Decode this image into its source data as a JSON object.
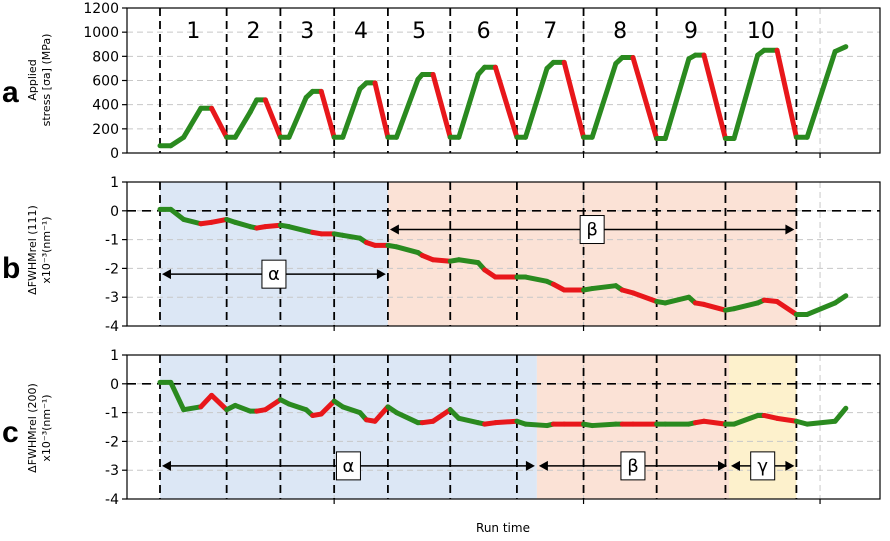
{
  "chart_data": [
    {
      "panel": "a",
      "type": "line",
      "ylabel_line1": "Applied",
      "ylabel_line2": "stress [σa] (MPa)",
      "ylim": [
        0,
        1200
      ],
      "yticks": [
        0,
        200,
        400,
        600,
        800,
        1000,
        1200
      ],
      "cycles": [
        "1",
        "2",
        "3",
        "4",
        "5",
        "6",
        "7",
        "8",
        "9",
        "10"
      ],
      "segment_colors": {
        "loading": "#2a8a1f",
        "unloading": "#e8171b"
      },
      "series": [
        {
          "points": [
            [
              0.0,
              60
            ],
            [
              0.25,
              60
            ],
            [
              0.55,
              130
            ],
            [
              0.95,
              370
            ],
            [
              1.2,
              370
            ],
            [
              1.55,
              130
            ]
          ]
        },
        {
          "points": [
            [
              1.55,
              130
            ],
            [
              1.75,
              130
            ],
            [
              2.1,
              340
            ],
            [
              2.25,
              440
            ],
            [
              2.45,
              440
            ],
            [
              2.8,
              130
            ]
          ]
        },
        {
          "points": [
            [
              2.8,
              130
            ],
            [
              3.0,
              130
            ],
            [
              3.4,
              460
            ],
            [
              3.55,
              510
            ],
            [
              3.75,
              510
            ],
            [
              4.05,
              130
            ]
          ]
        },
        {
          "points": [
            [
              4.05,
              130
            ],
            [
              4.25,
              130
            ],
            [
              4.65,
              530
            ],
            [
              4.8,
              580
            ],
            [
              5.0,
              580
            ],
            [
              5.3,
              130
            ]
          ]
        },
        {
          "points": [
            [
              5.3,
              130
            ],
            [
              5.5,
              130
            ],
            [
              6.0,
              610
            ],
            [
              6.1,
              650
            ],
            [
              6.35,
              650
            ],
            [
              6.75,
              130
            ]
          ]
        },
        {
          "points": [
            [
              6.75,
              130
            ],
            [
              6.95,
              130
            ],
            [
              7.4,
              650
            ],
            [
              7.55,
              710
            ],
            [
              7.8,
              710
            ],
            [
              8.3,
              130
            ]
          ]
        },
        {
          "points": [
            [
              8.3,
              130
            ],
            [
              8.5,
              130
            ],
            [
              9.0,
              700
            ],
            [
              9.15,
              750
            ],
            [
              9.4,
              750
            ],
            [
              9.85,
              130
            ]
          ]
        },
        {
          "points": [
            [
              9.85,
              130
            ],
            [
              10.05,
              130
            ],
            [
              10.6,
              740
            ],
            [
              10.75,
              790
            ],
            [
              11.0,
              790
            ],
            [
              11.55,
              120
            ]
          ]
        },
        {
          "points": [
            [
              11.55,
              120
            ],
            [
              11.75,
              120
            ],
            [
              12.3,
              780
            ],
            [
              12.45,
              810
            ],
            [
              12.65,
              810
            ],
            [
              13.15,
              120
            ]
          ]
        },
        {
          "points": [
            [
              13.15,
              120
            ],
            [
              13.35,
              120
            ],
            [
              13.9,
              810
            ],
            [
              14.05,
              850
            ],
            [
              14.35,
              850
            ],
            [
              14.8,
              130
            ]
          ]
        },
        {
          "points": [
            [
              14.8,
              130
            ],
            [
              15.05,
              130
            ],
            [
              15.7,
              840
            ],
            [
              15.95,
              880
            ]
          ]
        }
      ]
    },
    {
      "panel": "b",
      "type": "line",
      "ylabel_line1": "ΔFWHMrel (111)",
      "ylabel_line2": "x10⁻³(nm⁻¹)",
      "ylim": [
        -4,
        1
      ],
      "yticks": [
        -4,
        -3,
        -2,
        -1,
        0,
        1
      ],
      "regions": [
        {
          "label": "α",
          "from": 0,
          "to": 4,
          "color": "#dce7f5"
        },
        {
          "label": "β",
          "from": 4,
          "to": 10,
          "color": "#fbe2d6"
        }
      ],
      "series": [
        {
          "points": [
            [
              0.0,
              0.05
            ],
            [
              0.25,
              0.05
            ],
            [
              0.55,
              -0.3
            ],
            [
              0.95,
              -0.45
            ],
            [
              1.2,
              -0.4
            ],
            [
              1.55,
              -0.3
            ]
          ]
        },
        {
          "points": [
            [
              1.55,
              -0.3
            ],
            [
              1.75,
              -0.4
            ],
            [
              2.1,
              -0.55
            ],
            [
              2.25,
              -0.6
            ],
            [
              2.45,
              -0.55
            ],
            [
              2.8,
              -0.5
            ]
          ]
        },
        {
          "points": [
            [
              2.8,
              -0.5
            ],
            [
              3.0,
              -0.55
            ],
            [
              3.4,
              -0.7
            ],
            [
              3.55,
              -0.75
            ],
            [
              3.75,
              -0.8
            ],
            [
              4.05,
              -0.8
            ]
          ]
        },
        {
          "points": [
            [
              4.05,
              -0.8
            ],
            [
              4.25,
              -0.85
            ],
            [
              4.65,
              -0.95
            ],
            [
              4.8,
              -1.1
            ],
            [
              5.0,
              -1.2
            ],
            [
              5.3,
              -1.2
            ]
          ]
        },
        {
          "points": [
            [
              5.3,
              -1.2
            ],
            [
              5.5,
              -1.25
            ],
            [
              6.0,
              -1.45
            ],
            [
              6.1,
              -1.55
            ],
            [
              6.35,
              -1.7
            ],
            [
              6.75,
              -1.75
            ]
          ]
        },
        {
          "points": [
            [
              6.75,
              -1.75
            ],
            [
              6.95,
              -1.7
            ],
            [
              7.4,
              -1.8
            ],
            [
              7.55,
              -2.05
            ],
            [
              7.8,
              -2.3
            ],
            [
              8.3,
              -2.3
            ]
          ]
        },
        {
          "points": [
            [
              8.3,
              -2.3
            ],
            [
              8.5,
              -2.3
            ],
            [
              9.0,
              -2.45
            ],
            [
              9.15,
              -2.55
            ],
            [
              9.4,
              -2.75
            ],
            [
              9.85,
              -2.75
            ]
          ]
        },
        {
          "points": [
            [
              9.85,
              -2.75
            ],
            [
              10.05,
              -2.7
            ],
            [
              10.6,
              -2.6
            ],
            [
              10.75,
              -2.75
            ],
            [
              11.0,
              -2.85
            ],
            [
              11.55,
              -3.15
            ]
          ]
        },
        {
          "points": [
            [
              11.55,
              -3.15
            ],
            [
              11.75,
              -3.2
            ],
            [
              12.3,
              -3.0
            ],
            [
              12.45,
              -3.2
            ],
            [
              12.65,
              -3.25
            ],
            [
              13.15,
              -3.45
            ]
          ]
        },
        {
          "points": [
            [
              13.15,
              -3.45
            ],
            [
              13.35,
              -3.4
            ],
            [
              13.9,
              -3.2
            ],
            [
              14.05,
              -3.1
            ],
            [
              14.35,
              -3.15
            ],
            [
              14.8,
              -3.6
            ]
          ]
        },
        {
          "points": [
            [
              14.8,
              -3.6
            ],
            [
              15.05,
              -3.6
            ],
            [
              15.7,
              -3.2
            ],
            [
              15.95,
              -2.95
            ]
          ]
        }
      ]
    },
    {
      "panel": "c",
      "type": "line",
      "ylabel_line1": "ΔFWHMrel (200)",
      "ylabel_line2": "x10⁻³(nm⁻¹)",
      "ylim": [
        -4,
        1
      ],
      "yticks": [
        -4,
        -3,
        -2,
        -1,
        0,
        1
      ],
      "regions": [
        {
          "label": "α",
          "from": 0,
          "to": 6.3,
          "color": "#dce7f5"
        },
        {
          "label": "β",
          "from": 6.3,
          "to": 9.05,
          "color": "#fbe2d6"
        },
        {
          "label": "γ",
          "from": 9.05,
          "to": 10,
          "color": "#fdf1cc"
        }
      ],
      "series": [
        {
          "points": [
            [
              0.0,
              0.05
            ],
            [
              0.25,
              0.05
            ],
            [
              0.55,
              -0.9
            ],
            [
              0.95,
              -0.8
            ],
            [
              1.2,
              -0.4
            ],
            [
              1.55,
              -0.9
            ]
          ]
        },
        {
          "points": [
            [
              1.55,
              -0.9
            ],
            [
              1.75,
              -0.75
            ],
            [
              2.1,
              -0.95
            ],
            [
              2.25,
              -0.95
            ],
            [
              2.45,
              -0.9
            ],
            [
              2.8,
              -0.55
            ]
          ]
        },
        {
          "points": [
            [
              2.8,
              -0.55
            ],
            [
              3.0,
              -0.7
            ],
            [
              3.4,
              -0.9
            ],
            [
              3.55,
              -1.1
            ],
            [
              3.75,
              -1.05
            ],
            [
              4.05,
              -0.6
            ]
          ]
        },
        {
          "points": [
            [
              4.05,
              -0.6
            ],
            [
              4.25,
              -0.8
            ],
            [
              4.65,
              -1.0
            ],
            [
              4.8,
              -1.25
            ],
            [
              5.0,
              -1.3
            ],
            [
              5.3,
              -0.8
            ]
          ]
        },
        {
          "points": [
            [
              5.3,
              -0.8
            ],
            [
              5.5,
              -1.0
            ],
            [
              6.0,
              -1.35
            ],
            [
              6.1,
              -1.35
            ],
            [
              6.35,
              -1.3
            ],
            [
              6.75,
              -0.9
            ]
          ]
        },
        {
          "points": [
            [
              6.75,
              -0.9
            ],
            [
              6.95,
              -1.2
            ],
            [
              7.4,
              -1.35
            ],
            [
              7.55,
              -1.4
            ],
            [
              7.8,
              -1.35
            ],
            [
              8.3,
              -1.3
            ]
          ]
        },
        {
          "points": [
            [
              8.3,
              -1.3
            ],
            [
              8.5,
              -1.4
            ],
            [
              9.0,
              -1.45
            ],
            [
              9.15,
              -1.4
            ],
            [
              9.4,
              -1.4
            ],
            [
              9.85,
              -1.4
            ]
          ]
        },
        {
          "points": [
            [
              9.85,
              -1.4
            ],
            [
              10.05,
              -1.45
            ],
            [
              10.6,
              -1.4
            ],
            [
              10.75,
              -1.4
            ],
            [
              11.0,
              -1.4
            ],
            [
              11.55,
              -1.4
            ]
          ]
        },
        {
          "points": [
            [
              11.55,
              -1.4
            ],
            [
              11.75,
              -1.4
            ],
            [
              12.3,
              -1.4
            ],
            [
              12.45,
              -1.35
            ],
            [
              12.65,
              -1.3
            ],
            [
              13.15,
              -1.4
            ]
          ]
        },
        {
          "points": [
            [
              13.15,
              -1.4
            ],
            [
              13.35,
              -1.4
            ],
            [
              13.9,
              -1.1
            ],
            [
              14.05,
              -1.1
            ],
            [
              14.35,
              -1.2
            ],
            [
              14.8,
              -1.3
            ]
          ]
        },
        {
          "points": [
            [
              14.8,
              -1.3
            ],
            [
              15.05,
              -1.4
            ],
            [
              15.7,
              -1.3
            ],
            [
              15.95,
              -0.85
            ]
          ]
        }
      ]
    }
  ],
  "panels": {
    "a": {
      "letter": "a"
    },
    "b": {
      "letter": "b"
    },
    "c": {
      "letter": "c"
    }
  },
  "xlabel": "Run time"
}
